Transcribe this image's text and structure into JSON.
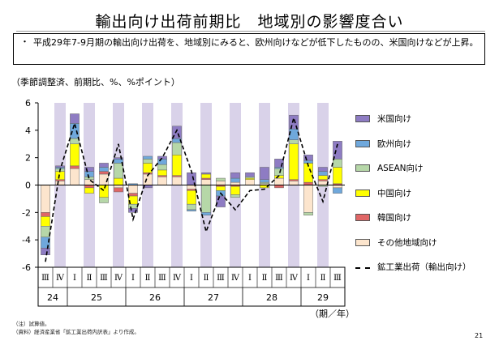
{
  "title": "輸出向け出荷前期比　地域別の影響度合い",
  "summary": {
    "bullet": "・",
    "text": "平成29年7-9月期の輸出向け出荷を、地域別にみると、欧州向けなどが低下したものの、米国向けなどが上昇。"
  },
  "unit_note": "（季節調整済、前期比、%、%ポイント）",
  "period_note": "（期／年）",
  "notes": [
    "（注）試算値。",
    "（資料）経済産業省「鉱工業出荷内訳表」より作成。"
  ],
  "page_number": "21",
  "colors": {
    "米国向け": "#8e7cc3",
    "欧州向け": "#6fa8dc",
    "ASEAN向け": "#b6d7a8",
    "中国向け": "#ffff00",
    "韓国向け": "#e06666",
    "その他地域向け": "#fce5cd",
    "shade": "#d9d2e9"
  },
  "chart_data": {
    "type": "bar",
    "stacked": true,
    "title": "",
    "xlabel": "（期／年）",
    "ylabel": "（季節調整済、前期比、%、%ポイント）",
    "ylim": [
      -6,
      6
    ],
    "yticks": [
      -6,
      -4,
      -2,
      0,
      2,
      4,
      6
    ],
    "grid": false,
    "legend_position": "right",
    "quarters": [
      "Ⅲ",
      "Ⅳ",
      "Ⅰ",
      "Ⅱ",
      "Ⅲ",
      "Ⅳ",
      "Ⅰ",
      "Ⅱ",
      "Ⅲ",
      "Ⅳ",
      "Ⅰ",
      "Ⅱ",
      "Ⅲ",
      "Ⅳ",
      "Ⅰ",
      "Ⅱ",
      "Ⅲ",
      "Ⅳ",
      "Ⅰ",
      "Ⅱ",
      "Ⅲ"
    ],
    "years": [
      {
        "label": "24",
        "start": 0,
        "end": 1
      },
      {
        "label": "25",
        "start": 2,
        "end": 5
      },
      {
        "label": "26",
        "start": 6,
        "end": 9
      },
      {
        "label": "27",
        "start": 10,
        "end": 13
      },
      {
        "label": "28",
        "start": 14,
        "end": 17
      },
      {
        "label": "29",
        "start": 18,
        "end": 20
      }
    ],
    "shaded_quarters": [
      1,
      3,
      5,
      7,
      9,
      11,
      13,
      15,
      17,
      19
    ],
    "series": [
      {
        "name": "その他地域向け",
        "values": [
          -2.0,
          0.3,
          1.2,
          0.4,
          0.8,
          -0.2,
          -0.6,
          0.8,
          0.6,
          0.6,
          -0.3,
          0.4,
          0.3,
          0.2,
          0.4,
          0.1,
          0.5,
          0.3,
          -2.0,
          0.3,
          -0.2
        ]
      },
      {
        "name": "韓国向け",
        "values": [
          -0.3,
          0.1,
          0.2,
          -0.2,
          0.2,
          -0.3,
          -0.2,
          0.1,
          0.1,
          0.1,
          -0.1,
          0.1,
          -0.1,
          -0.1,
          0.0,
          0.0,
          -0.2,
          0.1,
          0.2,
          0.1,
          0.1
        ]
      },
      {
        "name": "中国向け",
        "values": [
          -0.7,
          0.6,
          1.6,
          -0.4,
          -0.9,
          0.5,
          -0.6,
          0.7,
          0.4,
          1.5,
          -1.0,
          0.3,
          -0.3,
          -0.6,
          0.1,
          -0.2,
          0.2,
          2.6,
          1.4,
          0.3,
          1.2
        ]
      },
      {
        "name": "ASEAN向け",
        "values": [
          -0.8,
          0.2,
          0.4,
          0.2,
          -0.4,
          1.1,
          -0.3,
          0.3,
          0.4,
          0.9,
          -0.4,
          -2.0,
          0.2,
          -0.2,
          0.1,
          0.1,
          0.5,
          0.3,
          -0.2,
          -0.1,
          0.6
        ]
      },
      {
        "name": "欧州向け",
        "values": [
          -0.8,
          0.1,
          1.1,
          0.4,
          0.3,
          0.3,
          0.1,
          0.2,
          0.4,
          0.3,
          -0.1,
          -0.2,
          -0.4,
          0.3,
          0.0,
          0.2,
          0.1,
          0.8,
          0.2,
          0.3,
          -0.4
        ]
      },
      {
        "name": "米国向け",
        "values": [
          -0.5,
          0.1,
          0.7,
          0.3,
          0.3,
          0.1,
          -0.3,
          -0.2,
          0.2,
          0.9,
          0.9,
          0.1,
          -0.8,
          0.4,
          0.3,
          0.9,
          0.6,
          1.0,
          0.4,
          0.3,
          1.3
        ]
      }
    ],
    "line": {
      "name": "鉱工業出荷（輸出向け）",
      "values": [
        -5.6,
        1.1,
        4.5,
        0.4,
        -0.4,
        3.0,
        -2.5,
        0.7,
        2.0,
        4.0,
        1.0,
        -3.4,
        -0.6,
        -1.8,
        -0.4,
        -0.3,
        0.7,
        4.9,
        1.4,
        -1.2,
        3.0
      ]
    }
  }
}
